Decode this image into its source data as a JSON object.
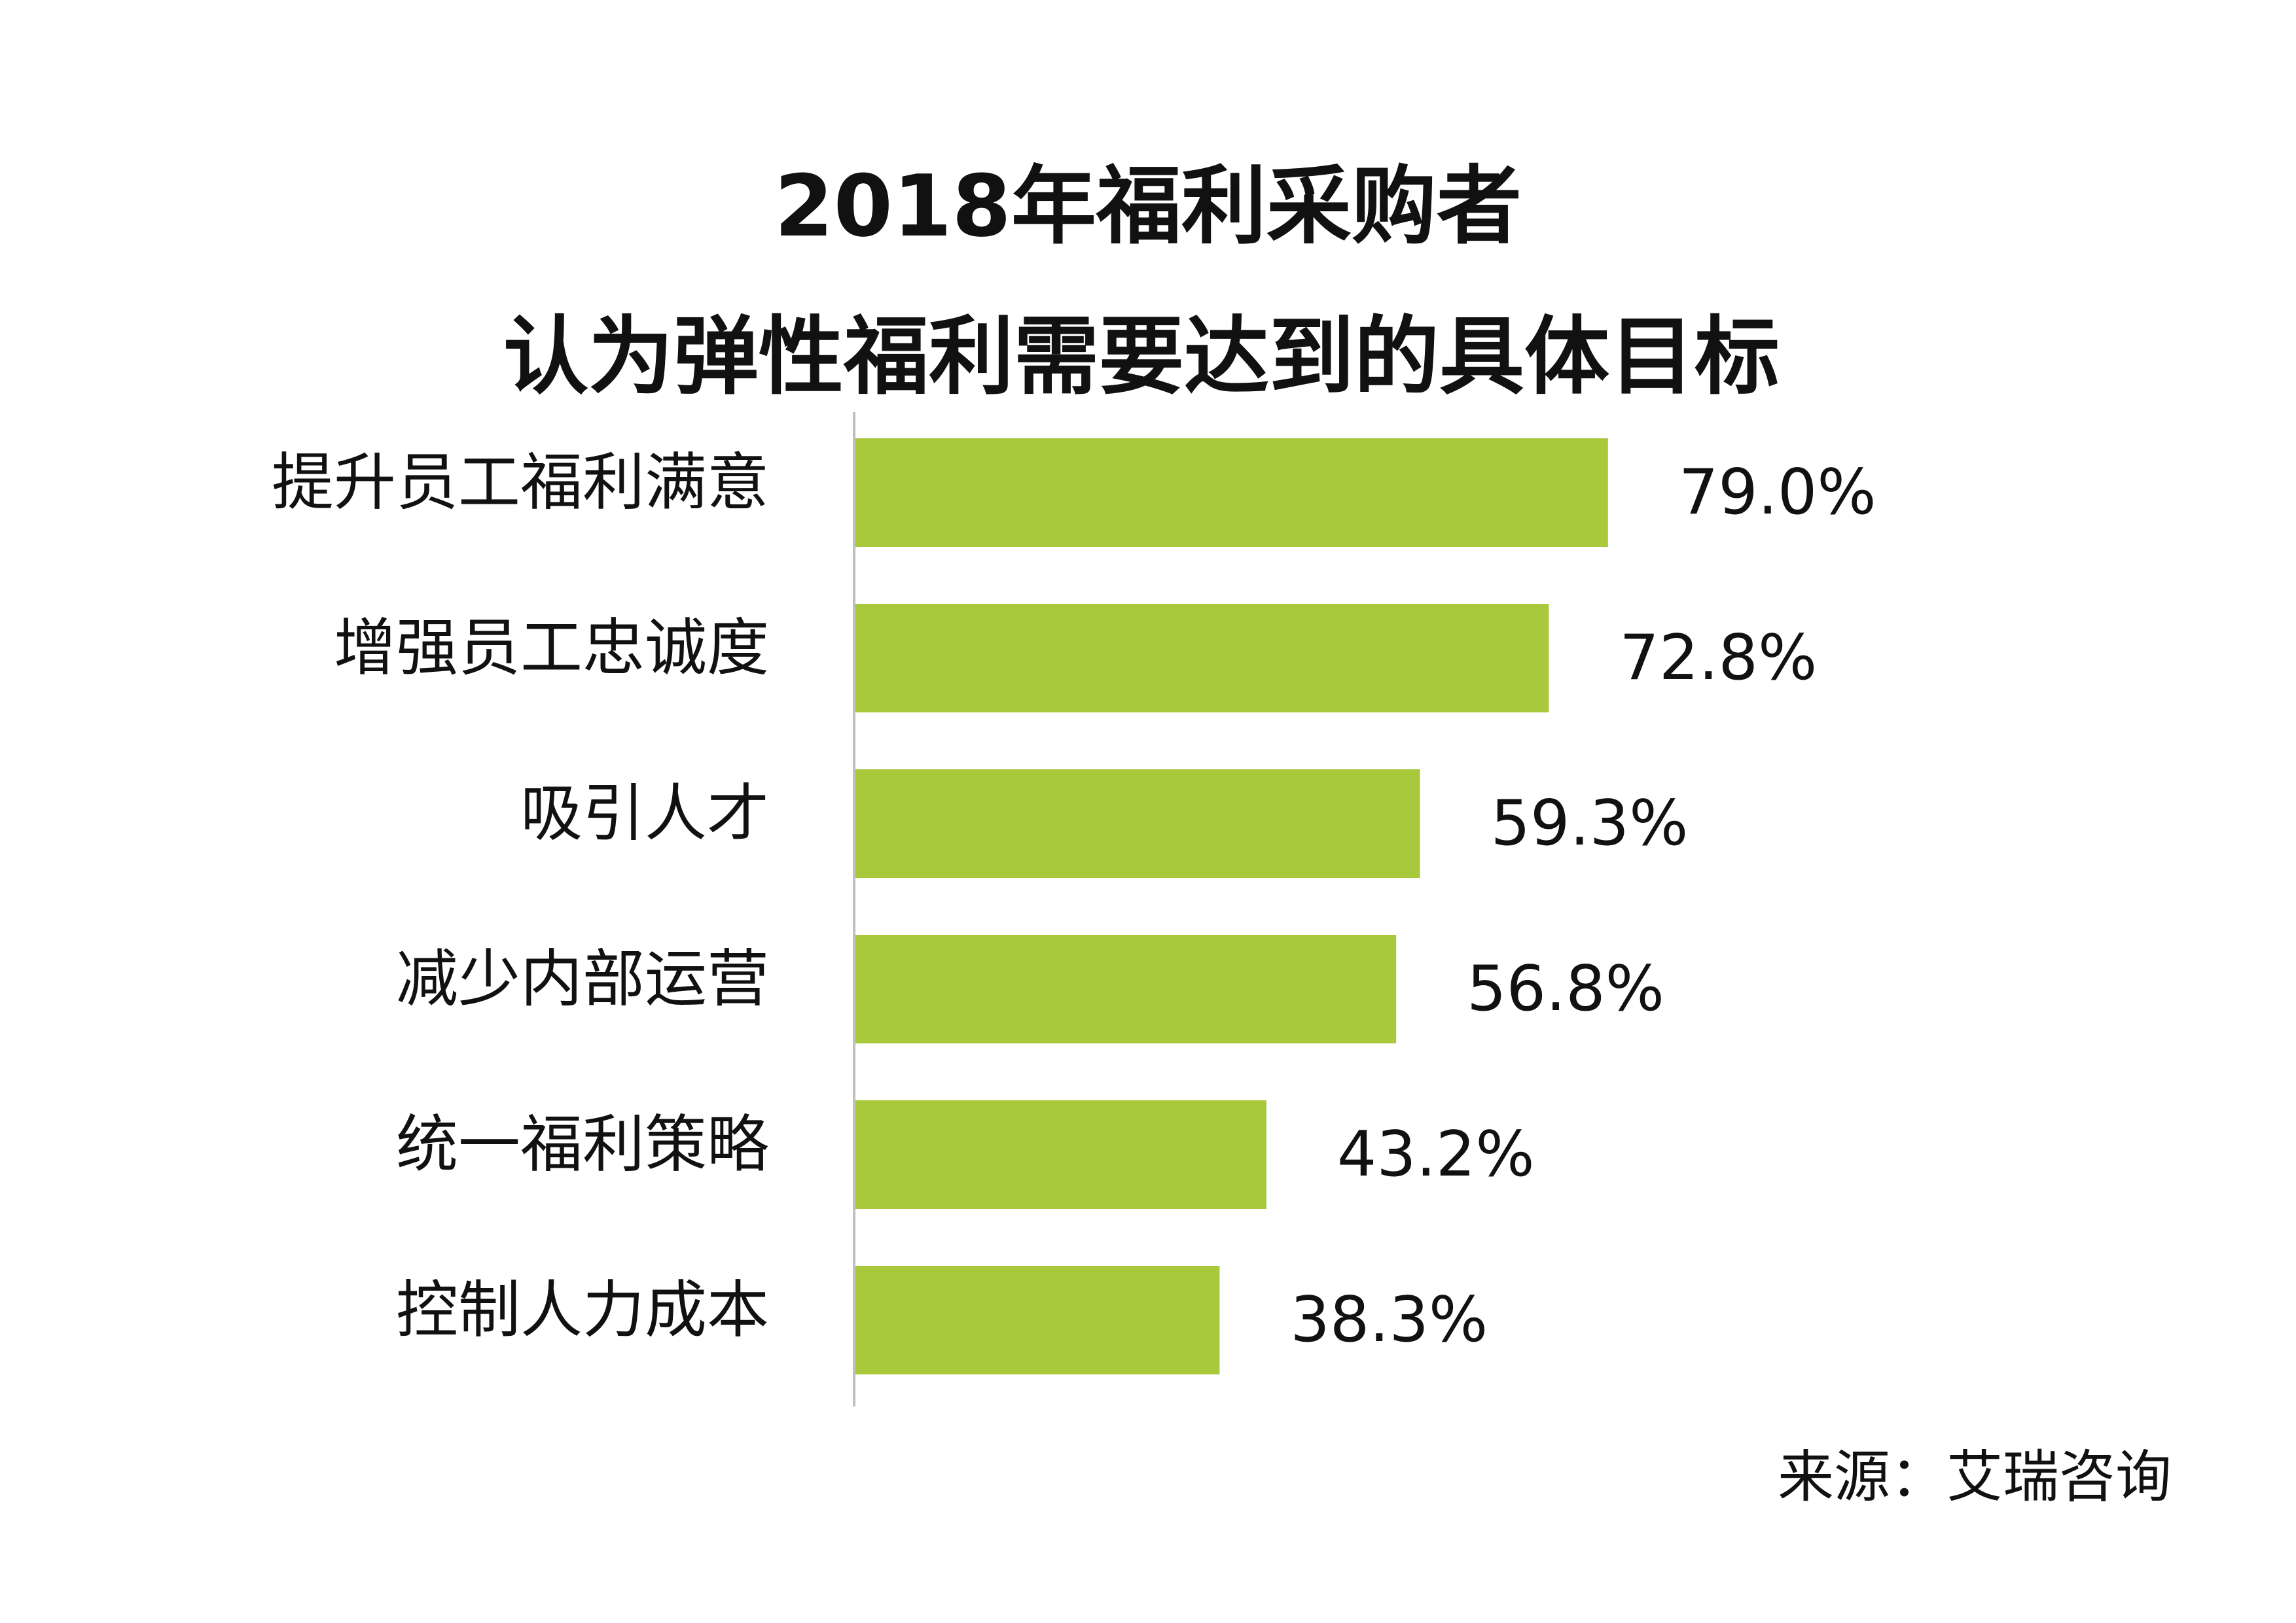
{
  "chart_data": {
    "type": "bar",
    "orientation": "horizontal",
    "title": "2018年福利采购者",
    "subtitle": "认为弹性福利需要达到的具体目标",
    "categories": [
      "提升员工福利满意",
      "增强员工忠诚度",
      "吸引人才",
      "减少内部运营",
      "统一福利策略",
      "控制人力成本"
    ],
    "values": [
      79.0,
      72.8,
      59.3,
      56.8,
      43.2,
      38.3
    ],
    "value_labels": [
      "79.0%",
      "72.8%",
      "59.3%",
      "56.8%",
      "43.2%",
      "38.3%"
    ],
    "unit": "%",
    "xlim": [
      0,
      100
    ],
    "grid": false,
    "legend": "none",
    "bar_color": "#a9c93c",
    "axis_color": "#bfbfbf",
    "source": "来源：艾瑞咨询"
  }
}
